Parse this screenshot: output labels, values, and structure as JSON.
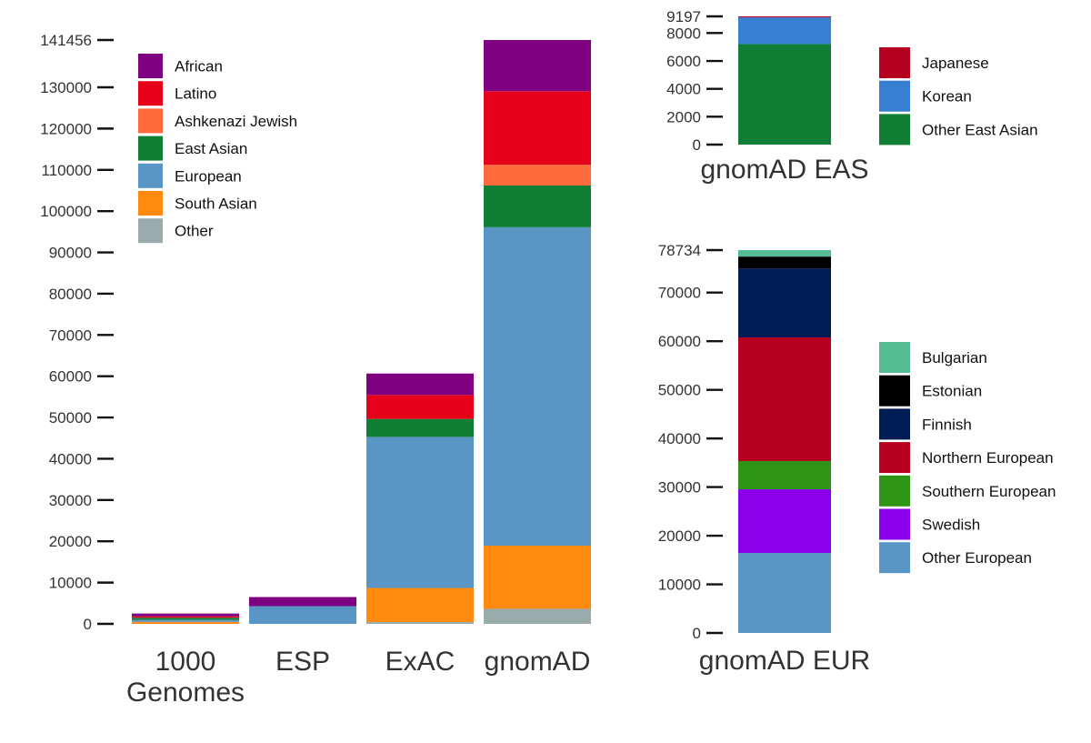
{
  "chart_data": [
    {
      "id": "main",
      "type": "bar",
      "stacked": true,
      "title": "",
      "xlabel": "",
      "ylabel": "",
      "categories": [
        "1000 Genomes",
        "ESP",
        "ExAC",
        "gnomAD"
      ],
      "category_lines": [
        [
          "1000",
          "Genomes"
        ],
        [
          "ESP"
        ],
        [
          "ExAC"
        ],
        [
          "gnomAD"
        ]
      ],
      "ylim": [
        0,
        141456
      ],
      "yticks": [
        0,
        10000,
        20000,
        30000,
        40000,
        50000,
        60000,
        70000,
        80000,
        90000,
        100000,
        110000,
        120000,
        130000,
        141456
      ],
      "grid": false,
      "legend_position": "top-left",
      "stack_order": [
        "Other",
        "South Asian",
        "European",
        "East Asian",
        "Ashkenazi Jewish",
        "Latino",
        "African"
      ],
      "legend_order": [
        "African",
        "Latino",
        "Ashkenazi Jewish",
        "East Asian",
        "European",
        "South Asian",
        "Other"
      ],
      "series": [
        {
          "name": "African",
          "color": "#7f0080",
          "values": [
            660,
            2200,
            5200,
            12400
          ]
        },
        {
          "name": "Latino",
          "color": "#e6001a",
          "values": [
            350,
            0,
            5800,
            17800
          ]
        },
        {
          "name": "Ashkenazi Jewish",
          "color": "#ff6b3d",
          "values": [
            0,
            0,
            0,
            5050
          ]
        },
        {
          "name": "East Asian",
          "color": "#117e35",
          "values": [
            500,
            0,
            4350,
            10100
          ]
        },
        {
          "name": "European",
          "color": "#5a96c5",
          "values": [
            500,
            4300,
            36600,
            77150
          ]
        },
        {
          "name": "South Asian",
          "color": "#ff8a0e",
          "values": [
            490,
            0,
            8250,
            15300
          ]
        },
        {
          "name": "Other",
          "color": "#9aabab",
          "values": [
            0,
            0,
            450,
            3650
          ]
        }
      ]
    },
    {
      "id": "eas",
      "type": "bar",
      "stacked": true,
      "title": "",
      "xlabel": "",
      "ylabel": "",
      "categories": [
        "gnomAD EAS"
      ],
      "category_lines": [
        [
          "gnomAD EAS"
        ]
      ],
      "ylim": [
        0,
        9197
      ],
      "yticks": [
        0,
        2000,
        4000,
        6000,
        8000,
        9197
      ],
      "grid": false,
      "legend_position": "right",
      "stack_order": [
        "Other East Asian",
        "Korean",
        "Japanese"
      ],
      "legend_order": [
        "Japanese",
        "Korean",
        "Other East Asian"
      ],
      "series": [
        {
          "name": "Japanese",
          "color": "#b5001f",
          "values": [
            76
          ]
        },
        {
          "name": "Korean",
          "color": "#367fd2",
          "values": [
            1909
          ]
        },
        {
          "name": "Other East Asian",
          "color": "#117e35",
          "values": [
            7212
          ]
        }
      ]
    },
    {
      "id": "eur",
      "type": "bar",
      "stacked": true,
      "title": "",
      "xlabel": "",
      "ylabel": "",
      "categories": [
        "gnomAD EUR"
      ],
      "category_lines": [
        [
          "gnomAD EUR"
        ]
      ],
      "ylim": [
        0,
        78734
      ],
      "yticks": [
        0,
        10000,
        20000,
        30000,
        40000,
        50000,
        60000,
        70000,
        78734
      ],
      "grid": false,
      "legend_position": "right",
      "stack_order": [
        "Other European",
        "Swedish",
        "Southern European",
        "Northern European",
        "Finnish",
        "Estonian",
        "Bulgarian"
      ],
      "legend_order": [
        "Bulgarian",
        "Estonian",
        "Finnish",
        "Northern European",
        "Southern European",
        "Swedish",
        "Other European"
      ],
      "series": [
        {
          "name": "Bulgarian",
          "color": "#55bb93",
          "values": [
            1335
          ]
        },
        {
          "name": "Estonian",
          "color": "#000000",
          "values": [
            2425
          ]
        },
        {
          "name": "Finnish",
          "color": "#001c55",
          "values": [
            14200
          ]
        },
        {
          "name": "Northern European",
          "color": "#b7001f",
          "values": [
            25425
          ]
        },
        {
          "name": "Southern European",
          "color": "#2e9416",
          "values": [
            5800
          ]
        },
        {
          "name": "Swedish",
          "color": "#8b00ea",
          "values": [
            13100
          ]
        },
        {
          "name": "Other European",
          "color": "#5a96c5",
          "values": [
            16449
          ]
        }
      ]
    }
  ]
}
